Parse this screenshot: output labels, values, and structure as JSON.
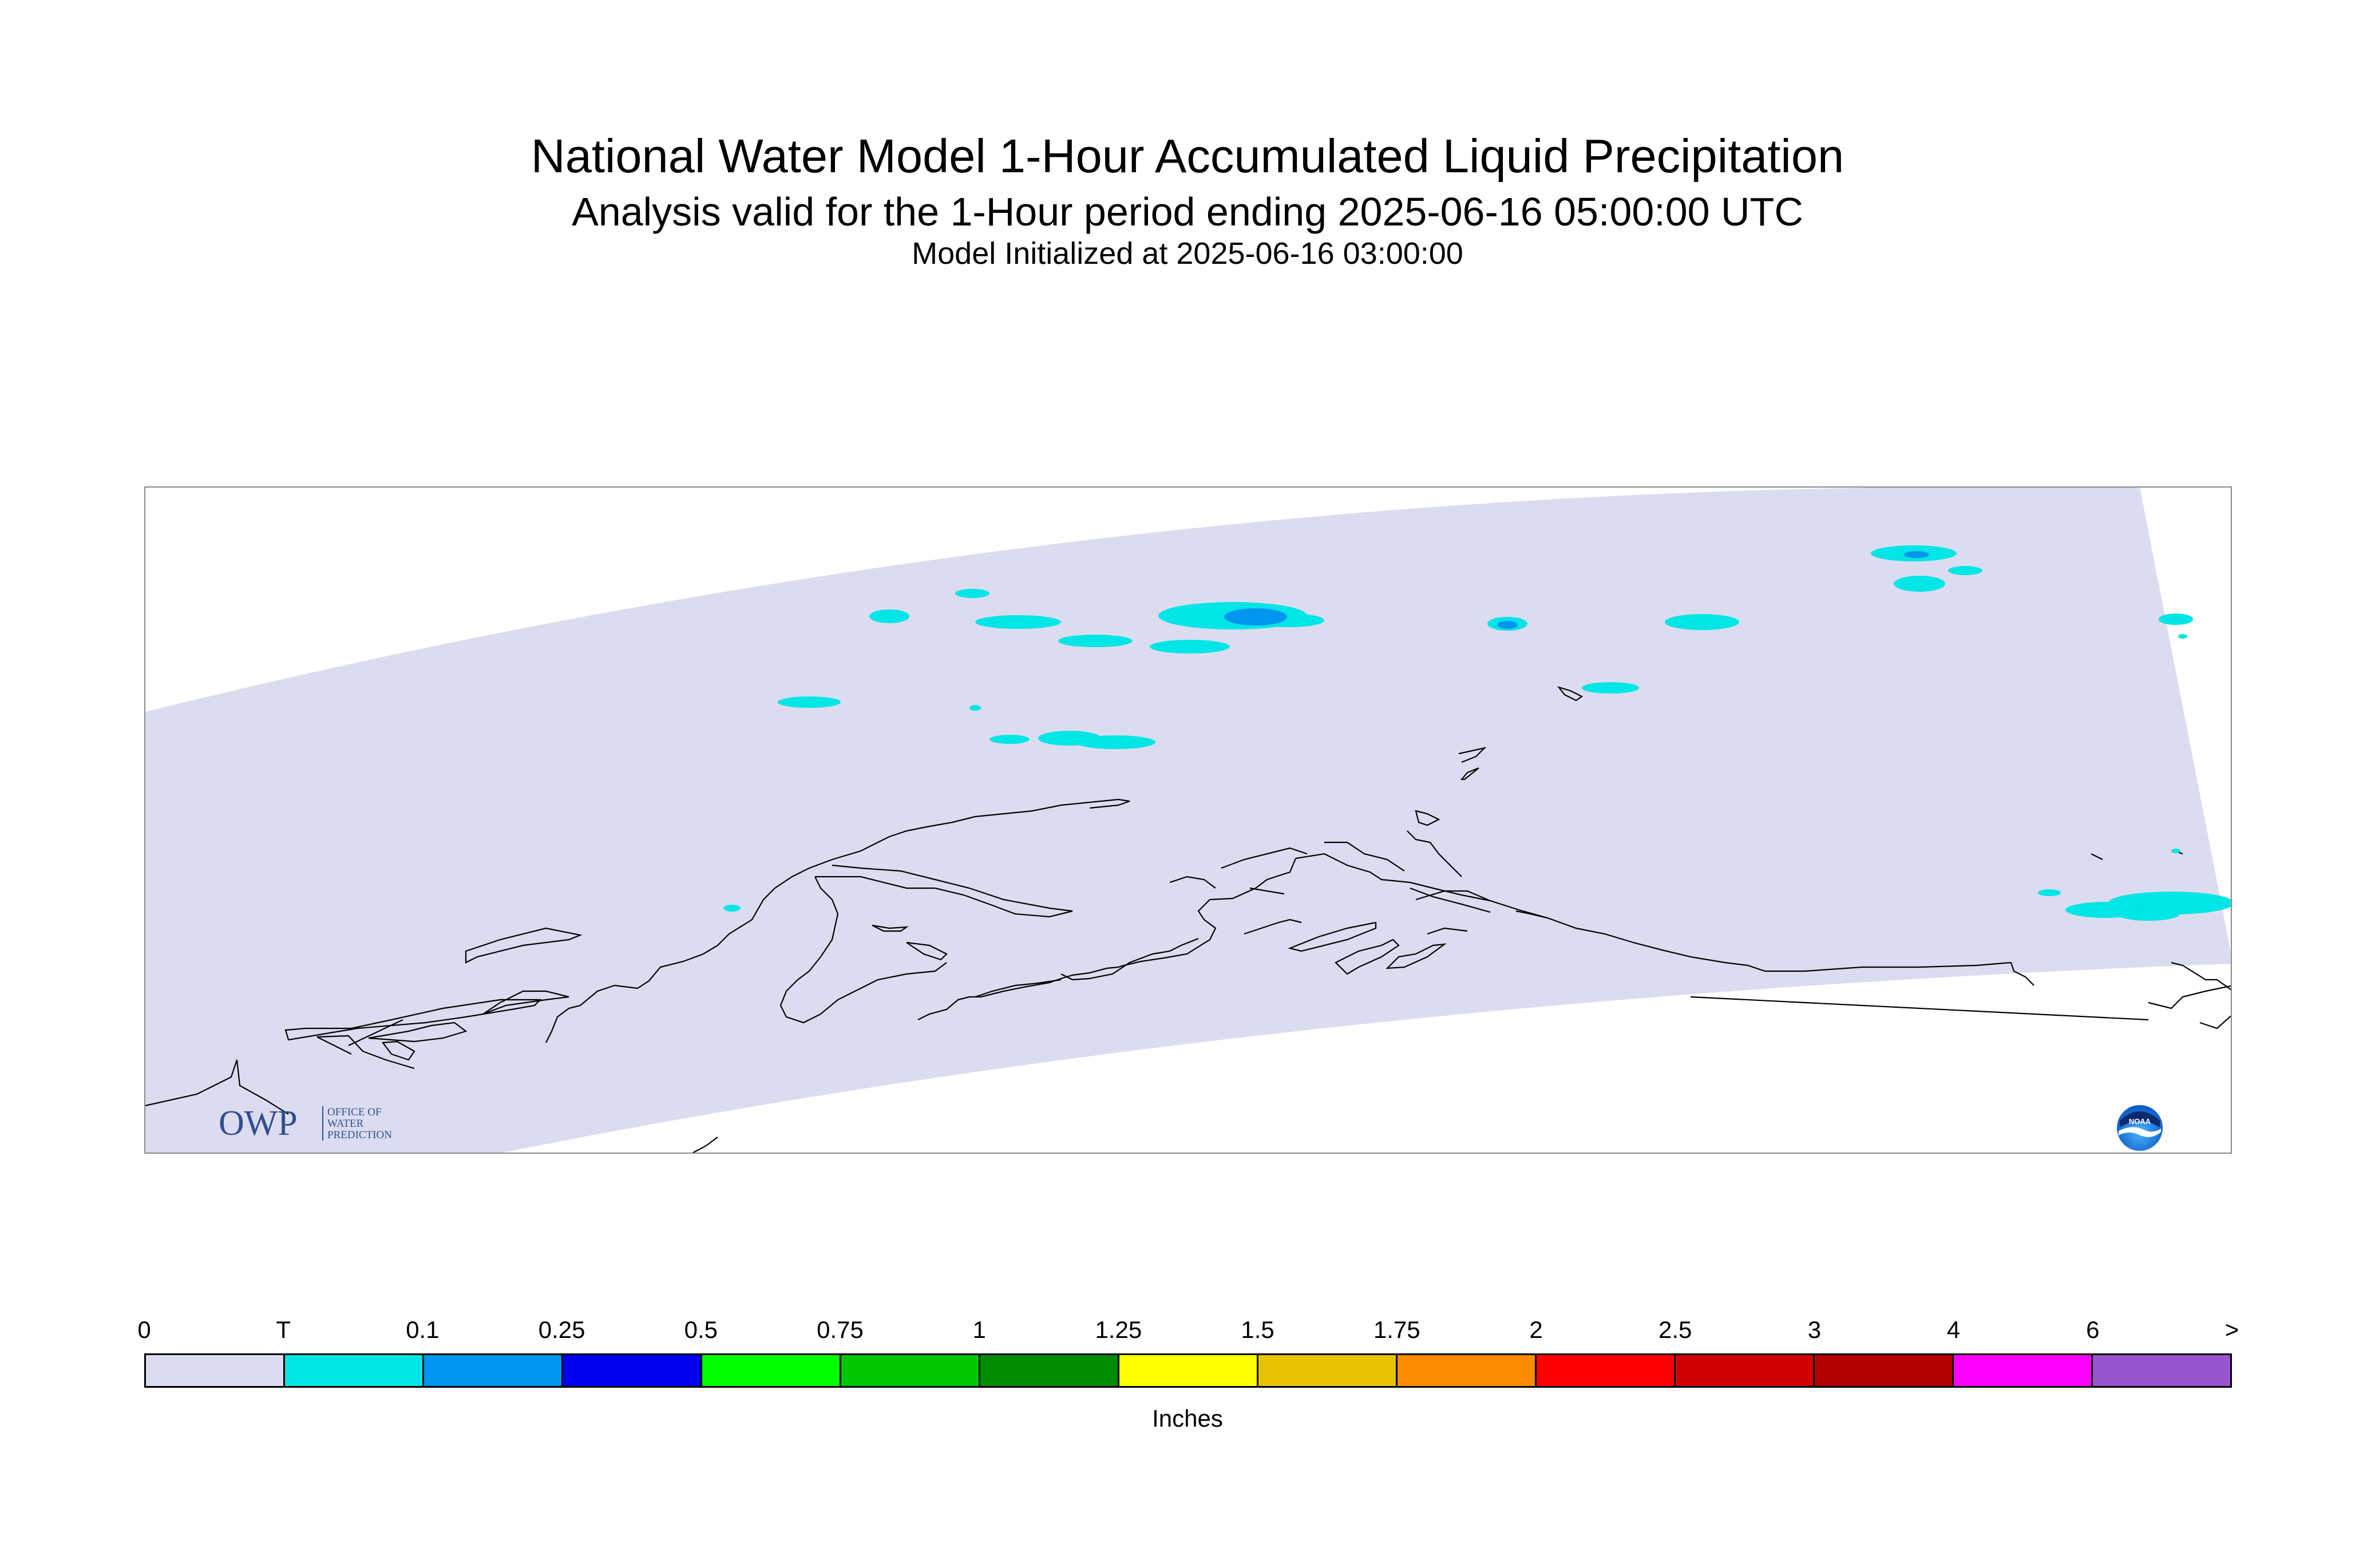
{
  "title": {
    "line1": "National Water Model 1-Hour Accumulated Liquid Precipitation",
    "line2": "Analysis valid for the 1-Hour period ending 2025-06-16 05:00:00 UTC",
    "line3": "Model Initialized at 2025-06-16 03:00:00"
  },
  "map": {
    "domain_fill_color": "#dcdcf0",
    "coastline_color": "#000000",
    "precip_colors": {
      "trace": "#00e5e5",
      "light": "#0095ee"
    }
  },
  "logos": {
    "owp": {
      "mark": "OWP",
      "line1": "OFFICE OF",
      "line2": "WATER",
      "line3": "PREDICTION"
    },
    "noaa": {
      "mark": "NOAA"
    }
  },
  "legend": {
    "unit": "Inches",
    "ticks": [
      "0",
      "T",
      "0.1",
      "0.25",
      "0.5",
      "0.75",
      "1",
      "1.25",
      "1.5",
      "1.75",
      "2",
      "2.5",
      "3",
      "4",
      "6",
      ">"
    ],
    "colors": [
      "#dcdcf0",
      "#00e5e5",
      "#0095ee",
      "#0000ee",
      "#00ff00",
      "#00c800",
      "#008c00",
      "#ffff00",
      "#e5c300",
      "#ff8c00",
      "#ff0000",
      "#d20000",
      "#b40000",
      "#ff00ff",
      "#9955cc"
    ]
  }
}
